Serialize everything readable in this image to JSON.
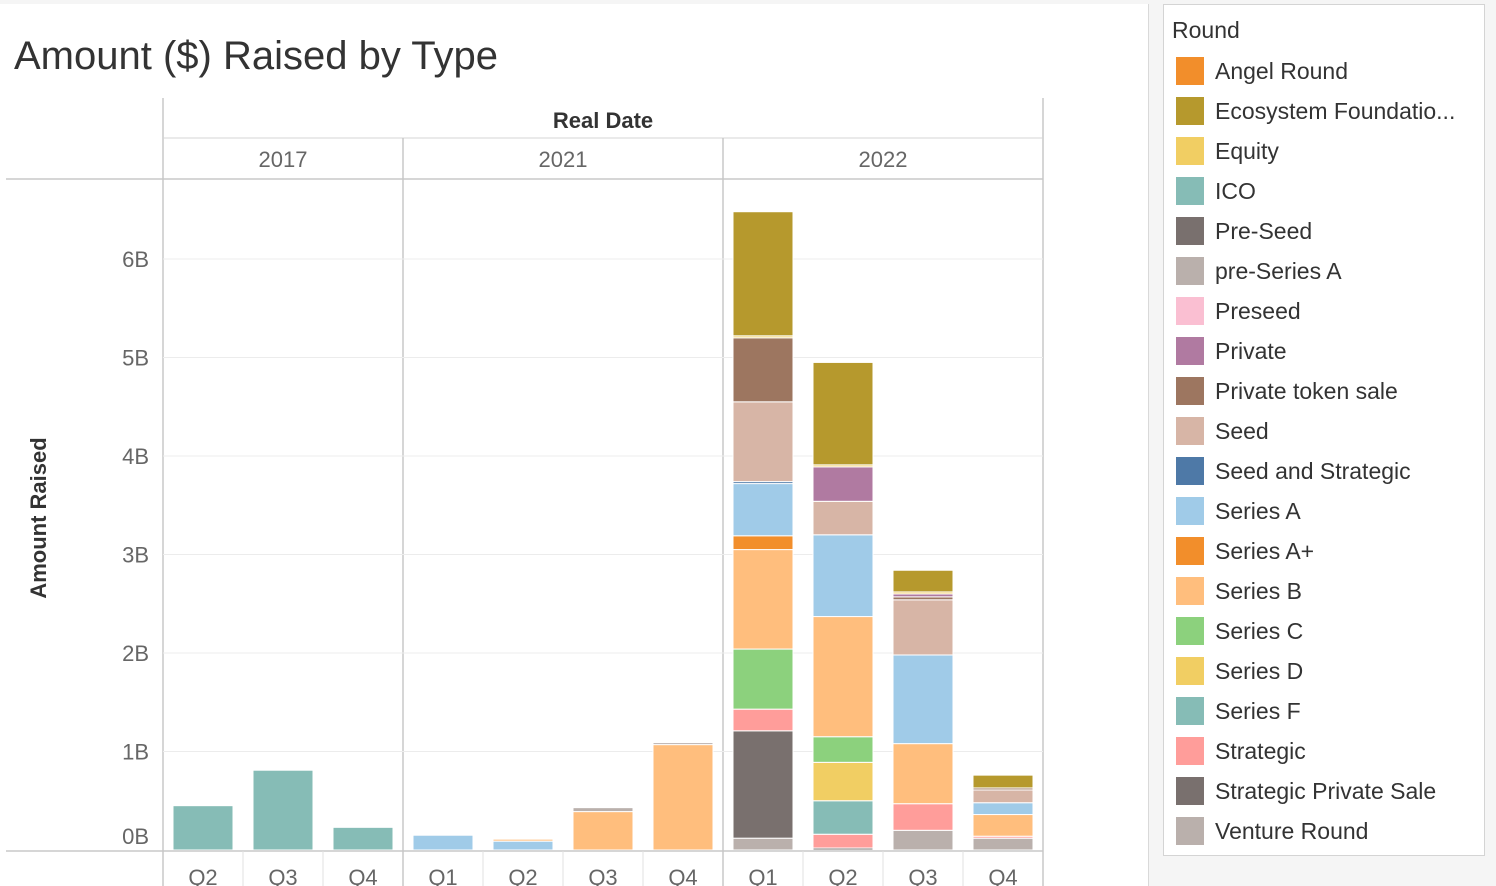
{
  "chart_data": {
    "type": "bar",
    "stacked": true,
    "title": "Amount ($) Raised by Type",
    "column_header": "Real Date",
    "ylabel": "Amount Raised",
    "ylim": [
      0,
      7000000000
    ],
    "yticks": [
      {
        "value": 0,
        "label": "0B"
      },
      {
        "value": 1000000000,
        "label": "1B"
      },
      {
        "value": 2000000000,
        "label": "2B"
      },
      {
        "value": 3000000000,
        "label": "3B"
      },
      {
        "value": 4000000000,
        "label": "4B"
      },
      {
        "value": 5000000000,
        "label": "5B"
      },
      {
        "value": 6000000000,
        "label": "6B"
      }
    ],
    "grid": true,
    "legend_position": "right",
    "years": [
      {
        "year": "2017",
        "quarters": [
          "Q2",
          "Q3",
          "Q4"
        ]
      },
      {
        "year": "2021",
        "quarters": [
          "Q1",
          "Q2",
          "Q3",
          "Q4"
        ]
      },
      {
        "year": "2022",
        "quarters": [
          "Q1",
          "Q2",
          "Q3",
          "Q4"
        ]
      }
    ],
    "legend_title": "Round",
    "rounds": [
      {
        "name": "Angel Round",
        "color": "#f28e2b"
      },
      {
        "name": "Ecosystem Foundatio...",
        "color": "#b6992d"
      },
      {
        "name": "Equity",
        "color": "#f1ce63"
      },
      {
        "name": "ICO",
        "color": "#86bcb6"
      },
      {
        "name": "Pre-Seed",
        "color": "#79706e"
      },
      {
        "name": "pre-Series A",
        "color": "#bab0ac"
      },
      {
        "name": "Preseed",
        "color": "#fabfd2"
      },
      {
        "name": "Private",
        "color": "#b07aa1"
      },
      {
        "name": "Private token sale",
        "color": "#9d7660"
      },
      {
        "name": "Seed",
        "color": "#d7b5a6"
      },
      {
        "name": "Seed and Strategic",
        "color": "#4e79a7"
      },
      {
        "name": "Series A",
        "color": "#a0cbe8"
      },
      {
        "name": "Series A+",
        "color": "#f28e2b"
      },
      {
        "name": "Series B",
        "color": "#ffbe7d"
      },
      {
        "name": "Series C",
        "color": "#8cd17d"
      },
      {
        "name": "Series D",
        "color": "#f1ce63"
      },
      {
        "name": "Series F",
        "color": "#86bcb6"
      },
      {
        "name": "Strategic",
        "color": "#ff9d9a"
      },
      {
        "name": "Strategic Private Sale",
        "color": "#79706e"
      },
      {
        "name": "Venture Round",
        "color": "#bab0ac"
      }
    ],
    "bars": [
      {
        "year": "2017",
        "quarter": "Q2",
        "segments": [
          {
            "round": "ICO",
            "value": 450000000
          }
        ]
      },
      {
        "year": "2017",
        "quarter": "Q3",
        "segments": [
          {
            "round": "ICO",
            "value": 810000000
          }
        ]
      },
      {
        "year": "2017",
        "quarter": "Q4",
        "segments": [
          {
            "round": "ICO",
            "value": 230000000
          }
        ]
      },
      {
        "year": "2021",
        "quarter": "Q1",
        "segments": [
          {
            "round": "Series A",
            "value": 150000000
          }
        ]
      },
      {
        "year": "2021",
        "quarter": "Q2",
        "segments": [
          {
            "round": "Series A",
            "value": 90000000
          },
          {
            "round": "Series B",
            "value": 20000000
          }
        ]
      },
      {
        "year": "2021",
        "quarter": "Q3",
        "segments": [
          {
            "round": "Series B",
            "value": 390000000
          },
          {
            "round": "Venture Round",
            "value": 40000000
          }
        ]
      },
      {
        "year": "2021",
        "quarter": "Q4",
        "segments": [
          {
            "round": "Series B",
            "value": 1070000000
          },
          {
            "round": "Venture Round",
            "value": 20000000
          }
        ]
      },
      {
        "year": "2022",
        "quarter": "Q1",
        "segments": [
          {
            "round": "Venture Round",
            "value": 120000000
          },
          {
            "round": "Strategic Private Sale",
            "value": 1090000000
          },
          {
            "round": "Strategic",
            "value": 220000000
          },
          {
            "round": "Series C",
            "value": 610000000
          },
          {
            "round": "Series B",
            "value": 1010000000
          },
          {
            "round": "Series A+",
            "value": 140000000
          },
          {
            "round": "Series A",
            "value": 530000000
          },
          {
            "round": "Seed and Strategic",
            "value": 20000000
          },
          {
            "round": "Seed",
            "value": 810000000
          },
          {
            "round": "Private token sale",
            "value": 650000000
          },
          {
            "round": "Equity",
            "value": 20000000
          },
          {
            "round": "Ecosystem Foundatio...",
            "value": 1260000000
          }
        ]
      },
      {
        "year": "2022",
        "quarter": "Q2",
        "segments": [
          {
            "round": "Pre-Seed",
            "value": 20000000
          },
          {
            "round": "Strategic",
            "value": 140000000
          },
          {
            "round": "Series F",
            "value": 340000000
          },
          {
            "round": "Series D",
            "value": 390000000
          },
          {
            "round": "Series C",
            "value": 260000000
          },
          {
            "round": "Series B",
            "value": 1220000000
          },
          {
            "round": "Series A",
            "value": 830000000
          },
          {
            "round": "Seed",
            "value": 340000000
          },
          {
            "round": "Private",
            "value": 350000000
          },
          {
            "round": "Equity",
            "value": 20000000
          },
          {
            "round": "Ecosystem Foundatio...",
            "value": 1040000000
          }
        ]
      },
      {
        "year": "2022",
        "quarter": "Q3",
        "segments": [
          {
            "round": "Venture Round",
            "value": 200000000
          },
          {
            "round": "Strategic",
            "value": 270000000
          },
          {
            "round": "Series B",
            "value": 610000000
          },
          {
            "round": "Series A",
            "value": 900000000
          },
          {
            "round": "Seed",
            "value": 560000000
          },
          {
            "round": "Private token sale",
            "value": 30000000
          },
          {
            "round": "Private",
            "value": 30000000
          },
          {
            "round": "Equity",
            "value": 20000000
          },
          {
            "round": "Ecosystem Foundatio...",
            "value": 220000000
          }
        ]
      },
      {
        "year": "2022",
        "quarter": "Q4",
        "segments": [
          {
            "round": "Venture Round",
            "value": 120000000
          },
          {
            "round": "Strategic",
            "value": 20000000
          },
          {
            "round": "Series B",
            "value": 220000000
          },
          {
            "round": "Series A",
            "value": 120000000
          },
          {
            "round": "Seed",
            "value": 130000000
          },
          {
            "round": "Private token sale",
            "value": 20000000
          },
          {
            "round": "Ecosystem Foundatio...",
            "value": 130000000
          }
        ]
      }
    ]
  }
}
